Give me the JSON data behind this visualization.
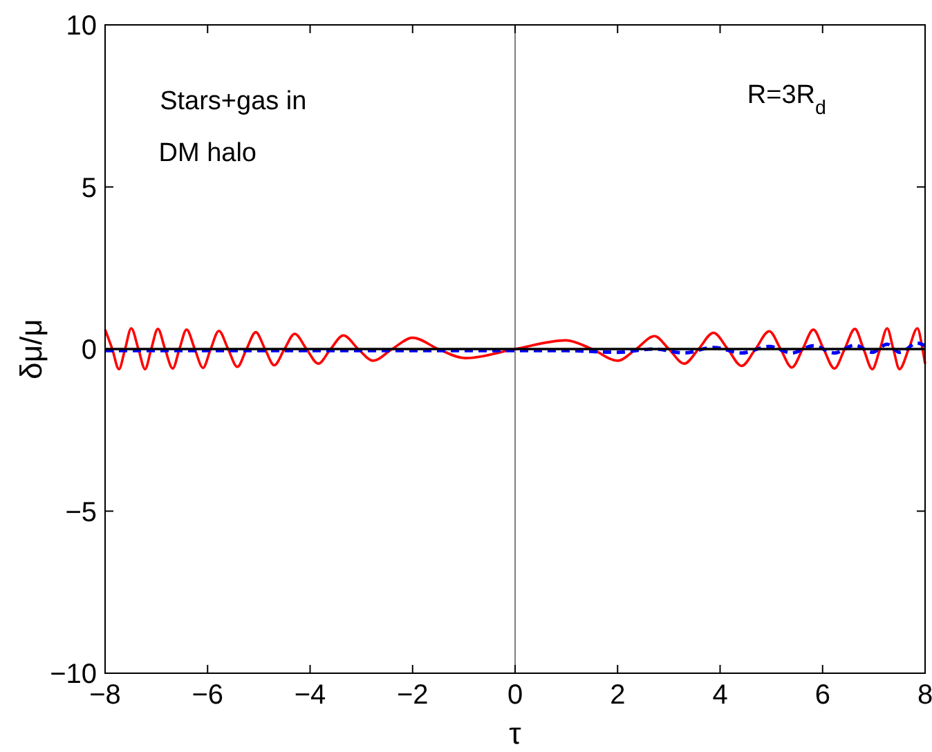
{
  "chart_data": {
    "type": "line",
    "xlabel": "τ",
    "ylabel": "δμ/μ",
    "annotations": [
      "Stars+gas in",
      "DM halo",
      "R=3R$_{d}$"
    ],
    "xlim": [
      -8,
      8
    ],
    "ylim": [
      -10,
      10
    ],
    "xticks": [
      -8,
      -6,
      -4,
      -2,
      0,
      2,
      4,
      6,
      8
    ],
    "yticks": [
      -10,
      -5,
      0,
      5,
      10
    ],
    "grid": false,
    "ref_lines": [
      {
        "axis": "x",
        "value": 0,
        "color": "#808080"
      }
    ],
    "series": [
      {
        "color": "#ff0000",
        "line_style": "solid",
        "x": [
          -8,
          -7.86,
          -7.73,
          -7.61,
          -7.49,
          -7.35,
          -7.22,
          -7.1,
          -6.97,
          -6.83,
          -6.68,
          -6.55,
          -6.41,
          -6.25,
          -6.09,
          -5.94,
          -5.78,
          -5.6,
          -5.42,
          -5.24,
          -5.06,
          -4.88,
          -4.7,
          -4.5,
          -4.3,
          -4.07,
          -3.84,
          -3.6,
          -3.35,
          -3.06,
          -2.77,
          -2.4,
          -2,
          -1.5,
          -0.97,
          0,
          0.99,
          1.5,
          2,
          2.36,
          2.72,
          3,
          3.3,
          3.58,
          3.87,
          4.15,
          4.42,
          4.69,
          4.96,
          5.18,
          5.4,
          5.61,
          5.82,
          6.02,
          6.23,
          6.43,
          6.63,
          6.8,
          6.97,
          7.12,
          7.26,
          7.38,
          7.5,
          7.68,
          7.85,
          7.95,
          8
        ],
        "values": [
          0.6,
          0,
          -0.62,
          0,
          0.64,
          0,
          -0.62,
          0,
          0.62,
          0,
          -0.6,
          0,
          0.6,
          0,
          -0.58,
          0,
          0.56,
          0,
          -0.55,
          0,
          0.52,
          0,
          -0.5,
          0,
          0.47,
          0,
          -0.45,
          0,
          0.42,
          0,
          -0.36,
          0,
          0.35,
          0,
          -0.28,
          0,
          0.27,
          0,
          -0.36,
          0,
          0.4,
          0,
          -0.45,
          0,
          0.5,
          0,
          -0.52,
          0,
          0.55,
          0,
          -0.57,
          0,
          0.6,
          0,
          -0.6,
          0,
          0.62,
          0,
          -0.62,
          0,
          0.64,
          0,
          -0.62,
          0,
          0.64,
          0,
          -0.45
        ]
      },
      {
        "color": "#0000ff",
        "line_style": "dashed",
        "x": [
          -8,
          -6,
          -4,
          -2,
          0,
          1,
          2,
          2.72,
          3.3,
          3.87,
          4.42,
          4.96,
          5.4,
          5.82,
          6.23,
          6.63,
          6.97,
          7.26,
          7.5,
          7.85,
          8
        ],
        "values": [
          -0.05,
          -0.05,
          -0.05,
          -0.05,
          -0.05,
          -0.05,
          -0.1,
          0,
          -0.12,
          0.05,
          -0.12,
          0.08,
          -0.12,
          0.1,
          -0.12,
          0.12,
          -0.1,
          0.15,
          -0.1,
          0.18,
          0.1
        ]
      },
      {
        "color": "#000000",
        "line_style": "solid",
        "x": [
          -8,
          8
        ],
        "values": [
          0,
          0
        ]
      }
    ]
  }
}
